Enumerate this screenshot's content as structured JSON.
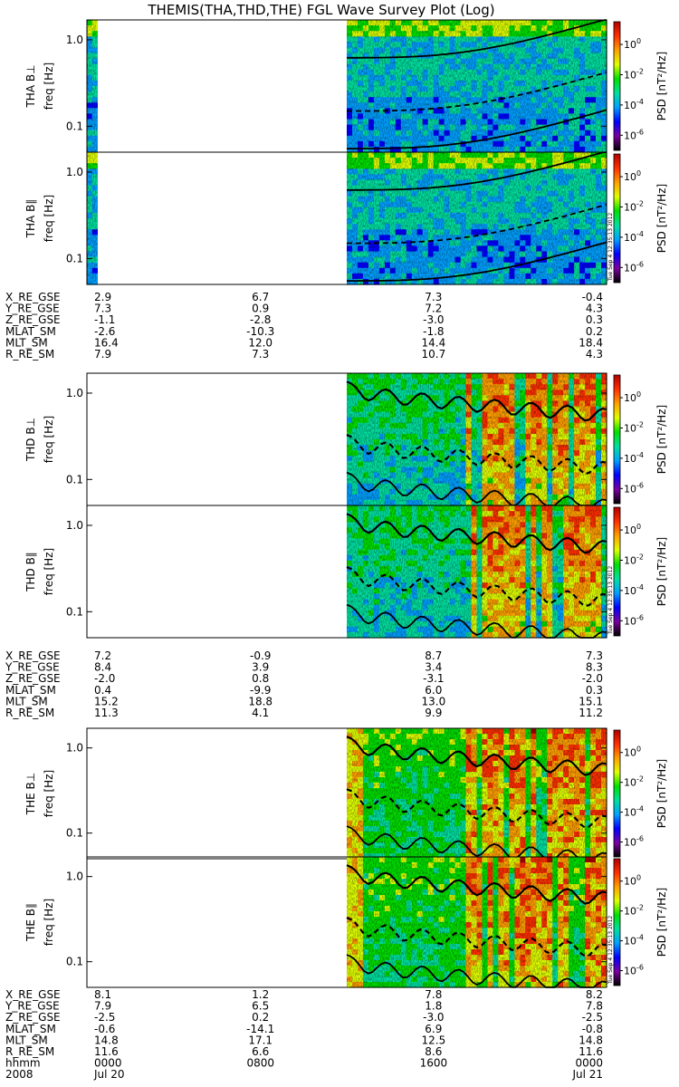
{
  "chart_data": {
    "type": "heatmap",
    "title": "THEMIS(THA,THD,THE) FGL Wave Survey Plot (Log)",
    "scale": "log",
    "ylim_hz": [
      0.05,
      1.7
    ],
    "yticks": [
      {
        "v": 1.0,
        "label": "1.0"
      },
      {
        "v": 0.1,
        "label": "0.1"
      }
    ],
    "colorbar": {
      "label": "PSD [nT²/Hz]",
      "ticks": [
        {
          "exp": 0,
          "label": "10"
        },
        {
          "exp": -2,
          "label": "10"
        },
        {
          "exp": -4,
          "label": "10"
        },
        {
          "exp": -6,
          "label": "10"
        }
      ],
      "tick_exponents": [
        "0",
        "-2",
        "-4",
        "-6"
      ],
      "range_exp": [
        -7,
        1.5
      ],
      "colors": [
        "#000000",
        "#7a00a0",
        "#0000ff",
        "#00a0ff",
        "#00e0a0",
        "#00e000",
        "#e0ff00",
        "#ffa000",
        "#ff3000",
        "#b00000"
      ]
    },
    "stamp": "Tue Sep  4 12:35:13 2012",
    "probes": [
      {
        "id": "THA",
        "panels": [
          {
            "ylabel": "THA B⊥",
            "ylabel2": "freq [Hz]"
          },
          {
            "ylabel": "THA B∥",
            "ylabel2": "freq [Hz]"
          }
        ],
        "coverage": [
          [
            0.0,
            0.02
          ],
          [
            0.5,
            1.0
          ]
        ],
        "ephemeris": [
          {
            "name": "X_RE_GSE",
            "values": [
              "2.9",
              "6.7",
              "7.3",
              "-0.4"
            ]
          },
          {
            "name": "Y_RE_GSE",
            "values": [
              "7.3",
              "0.9",
              "7.2",
              "4.3"
            ]
          },
          {
            "name": "Z_RE_GSE",
            "values": [
              "-1.1",
              "-2.8",
              "-3.0",
              "0.3"
            ]
          },
          {
            "name": "MLAT_SM",
            "values": [
              "-2.6",
              "-10.3",
              "-1.8",
              "0.2"
            ]
          },
          {
            "name": "MLT_SM",
            "values": [
              "16.4",
              "12.0",
              "14.4",
              "18.4"
            ]
          },
          {
            "name": "R_RE_SM",
            "values": [
              "7.9",
              "7.3",
              "10.7",
              "4.3"
            ]
          }
        ]
      },
      {
        "id": "THD",
        "panels": [
          {
            "ylabel": "THD B⊥",
            "ylabel2": "freq [Hz]"
          },
          {
            "ylabel": "THD B∥",
            "ylabel2": "freq [Hz]"
          }
        ],
        "coverage": [
          [
            0.5,
            1.0
          ]
        ],
        "ephemeris": [
          {
            "name": "X_RE_GSE",
            "values": [
              "7.2",
              "-0.9",
              "8.7",
              "7.3"
            ]
          },
          {
            "name": "Y_RE_GSE",
            "values": [
              "8.4",
              "3.9",
              "3.4",
              "8.3"
            ]
          },
          {
            "name": "Z_RE_GSE",
            "values": [
              "-2.0",
              "0.8",
              "-3.1",
              "-2.0"
            ]
          },
          {
            "name": "MLAT_SM",
            "values": [
              "0.4",
              "-9.9",
              "6.0",
              "0.3"
            ]
          },
          {
            "name": "MLT_SM",
            "values": [
              "15.2",
              "18.8",
              "13.0",
              "15.1"
            ]
          },
          {
            "name": "R_RE_SM",
            "values": [
              "11.3",
              "4.1",
              "9.9",
              "11.2"
            ]
          }
        ]
      },
      {
        "id": "THE",
        "panels": [
          {
            "ylabel": "THE B⊥",
            "ylabel2": "freq [Hz]"
          },
          {
            "ylabel": "THE B∥",
            "ylabel2": "freq [Hz]"
          }
        ],
        "coverage": [
          [
            0.5,
            1.0
          ]
        ],
        "ephemeris": [
          {
            "name": "X_RE_GSE",
            "values": [
              "8.1",
              "1.2",
              "7.8",
              "8.2"
            ]
          },
          {
            "name": "Y_RE_GSE",
            "values": [
              "7.9",
              "6.5",
              "1.8",
              "7.8"
            ]
          },
          {
            "name": "Z_RE_GSE",
            "values": [
              "-2.5",
              "0.2",
              "-3.0",
              "-2.5"
            ]
          },
          {
            "name": "MLAT_SM",
            "values": [
              "-0.6",
              "-14.1",
              "6.9",
              "-0.8"
            ]
          },
          {
            "name": "MLT_SM",
            "values": [
              "14.8",
              "17.1",
              "12.5",
              "14.8"
            ]
          },
          {
            "name": "R_RE_SM",
            "values": [
              "11.6",
              "6.6",
              "8.6",
              "11.6"
            ]
          }
        ]
      }
    ],
    "time_axis": {
      "row1": {
        "name": "hhmm",
        "values": [
          "0000",
          "0800",
          "1600",
          "0000"
        ]
      },
      "row2": {
        "name": "2008",
        "values": [
          "Jul 20",
          "",
          "",
          "Jul 21"
        ]
      }
    }
  }
}
